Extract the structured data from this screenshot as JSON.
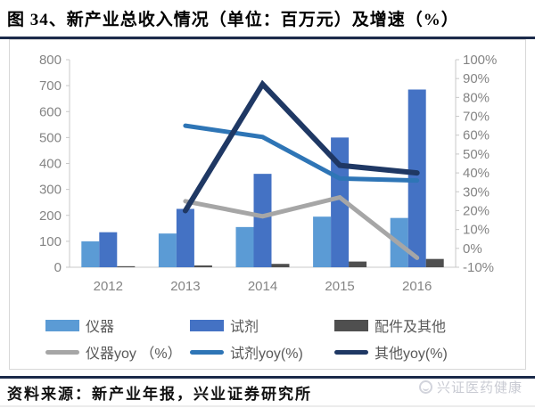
{
  "title": "图 34、新产业总收入情况（单位：百万元）及增速（%）",
  "footer": {
    "source": "资料来源：新产业年报，兴业证券研究所",
    "watermark": "兴证医药健康"
  },
  "chart_data": {
    "type": "bar+line",
    "title": "新产业总收入情况（单位：百万元）及增速（%）",
    "categories": [
      "2012",
      "2013",
      "2014",
      "2015",
      "2016"
    ],
    "bar_series": [
      {
        "name": "仪器",
        "color": "#5B9BD5",
        "axis": "left",
        "values": [
          100,
          130,
          155,
          195,
          190
        ]
      },
      {
        "name": "试剂",
        "color": "#4472C4",
        "axis": "left",
        "values": [
          135,
          225,
          360,
          500,
          685
        ]
      },
      {
        "name": "配件及其他",
        "color": "#4F4F4F",
        "axis": "left",
        "values": [
          4,
          7,
          13,
          22,
          32
        ]
      }
    ],
    "line_series": [
      {
        "name": "仪器yoy （%）",
        "color": "#A6A6A6",
        "axis": "right",
        "values": [
          null,
          25,
          17,
          27,
          -5
        ]
      },
      {
        "name": "试剂yoy(%)",
        "color": "#2E75B6",
        "axis": "right",
        "values": [
          null,
          65,
          59,
          37,
          36
        ]
      },
      {
        "name": "其他yoy(%)",
        "color": "#1F3864",
        "axis": "right",
        "values": [
          null,
          20,
          87,
          44,
          40
        ]
      }
    ],
    "left_axis": {
      "min": 0,
      "max": 800,
      "step": 100,
      "ticks": [
        "800",
        "700",
        "600",
        "500",
        "400",
        "300",
        "200",
        "100",
        "0"
      ]
    },
    "right_axis": {
      "min": -10,
      "max": 100,
      "step": 10,
      "suffix": "%",
      "ticks": [
        "100%",
        "90%",
        "80%",
        "70%",
        "60%",
        "50%",
        "40%",
        "30%",
        "20%",
        "10%",
        "0%",
        "-10%"
      ]
    },
    "legend_position": "bottom",
    "grid": false
  }
}
